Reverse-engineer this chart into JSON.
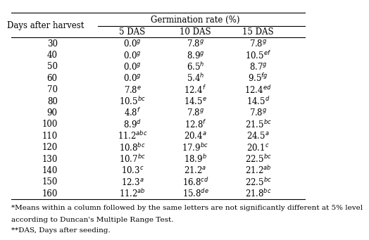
{
  "title": "Germination rate (%)",
  "col_header_left": "Days after harvest",
  "col_header_right": [
    "5 DAS",
    "10 DAS",
    "15 DAS"
  ],
  "rows": [
    [
      "30",
      "0.0g",
      "7.8g",
      "7.8g"
    ],
    [
      "40",
      "0.0g",
      "8.9g",
      "10.5ef"
    ],
    [
      "50",
      "0.0g",
      "6.5h",
      "8.7g"
    ],
    [
      "60",
      "0.0g",
      "5.4h",
      "9.5fg"
    ],
    [
      "70",
      "7.8e",
      "12.4f",
      "12.4ed"
    ],
    [
      "80",
      "10.5bc",
      "14.5e",
      "14.5d"
    ],
    [
      "90",
      "4.8f",
      "7.8g",
      "7.8g"
    ],
    [
      "100",
      "8.9d",
      "12.8f",
      "21.5bc"
    ],
    [
      "110",
      "11.2abc",
      "20.4a",
      "24.5a"
    ],
    [
      "120",
      "10.8bc",
      "17.9bc",
      "20.1c"
    ],
    [
      "130",
      "10.7bc",
      "18.9b",
      "22.5bc"
    ],
    [
      "140",
      "10.3c",
      "21.2a",
      "21.2ab"
    ],
    [
      "150",
      "12.3a",
      "16.8cd",
      "22.5bc"
    ],
    [
      "160",
      "11.2ab",
      "15.8de",
      "21.8bc"
    ]
  ],
  "footnote1": "*Means within a column followed by the same letters are not significantly different at 5% level",
  "footnote2": "according to Duncan's Multiple Range Test.",
  "footnote3": "**DAS, Days after seeding.",
  "bg_color": "#ffffff",
  "text_color": "#000000",
  "font_size": 8.5,
  "header_font_size": 8.5,
  "footnote_font_size": 7.5
}
